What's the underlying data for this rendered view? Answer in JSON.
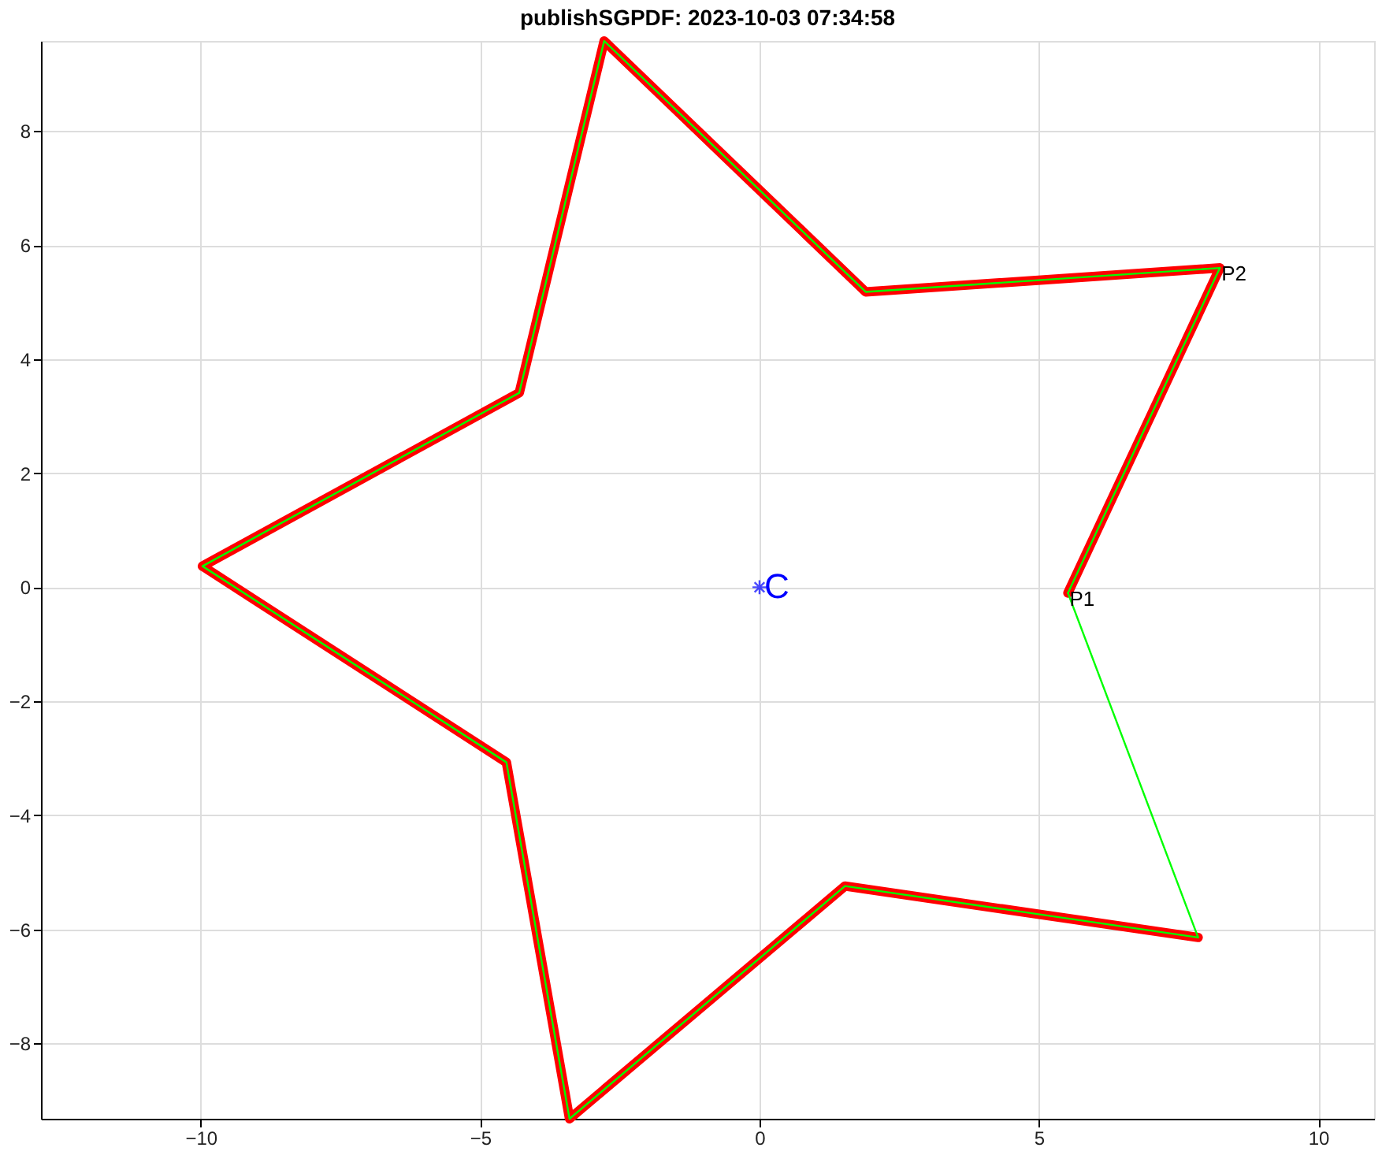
{
  "chart_data": {
    "type": "line",
    "title": "publishSGPDF: 2023-10-03 07:34:58",
    "xlim": [
      -12.86,
      11.0
    ],
    "ylim": [
      -9.32,
      9.58
    ],
    "xticks": [
      -10,
      -5,
      0,
      5,
      10
    ],
    "yticks": [
      -8,
      -6,
      -4,
      -2,
      0,
      2,
      4,
      6,
      8
    ],
    "grid": true,
    "legend": false,
    "series": [
      {
        "color": "#ff0000",
        "marker": "none",
        "x": [
          5.52,
          8.24,
          1.9,
          -2.78,
          -4.3,
          -9.97,
          -4.53,
          -3.4,
          1.53,
          7.85
        ],
        "values": [
          -0.1,
          5.6,
          5.18,
          9.58,
          3.41,
          0.37,
          -3.07,
          -9.32,
          -5.24,
          -6.14
        ]
      },
      {
        "color": "#00ff00",
        "marker": "none",
        "x": [
          5.52,
          8.24,
          1.9,
          -2.78,
          -4.3,
          -9.97,
          -4.53,
          -3.4,
          1.53,
          7.85
        ],
        "values": [
          -0.1,
          5.6,
          5.18,
          9.58,
          3.41,
          0.37,
          -3.07,
          -9.32,
          -5.24,
          -6.14
        ]
      },
      {
        "color": "#00ff00",
        "marker": "none",
        "x": [
          7.85,
          5.52
        ],
        "values": [
          -6.14,
          -0.1
        ]
      },
      {
        "type": "scatter",
        "name": "C",
        "color": "#0000ff",
        "marker": "cross",
        "x": [
          0
        ],
        "values": [
          0
        ]
      }
    ],
    "annotations": [
      {
        "text": "P1",
        "x": 5.52,
        "y": -0.1
      },
      {
        "text": "P2",
        "x": 8.24,
        "y": 5.6
      }
    ]
  }
}
